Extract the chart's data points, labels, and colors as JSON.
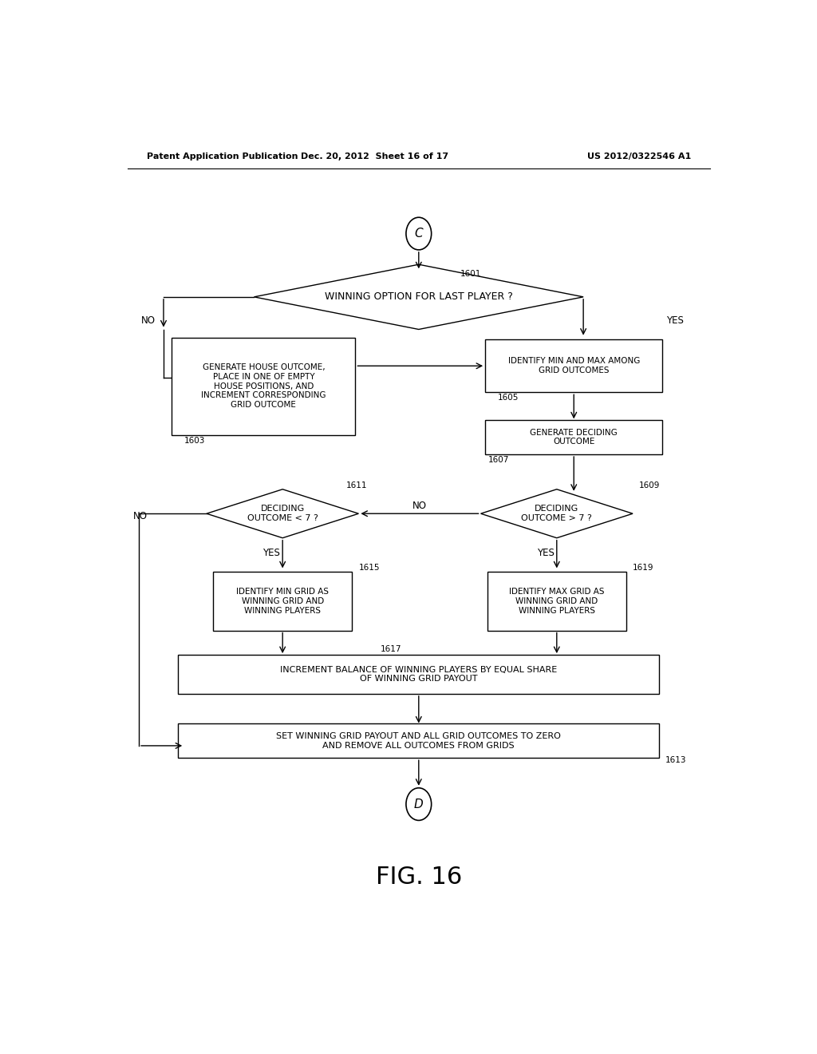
{
  "bg_color": "#ffffff",
  "header_left": "Patent Application Publication",
  "header_mid": "Dec. 20, 2012  Sheet 16 of 17",
  "header_right": "US 2012/0322546 A1",
  "fig_label": "FIG. 16"
}
